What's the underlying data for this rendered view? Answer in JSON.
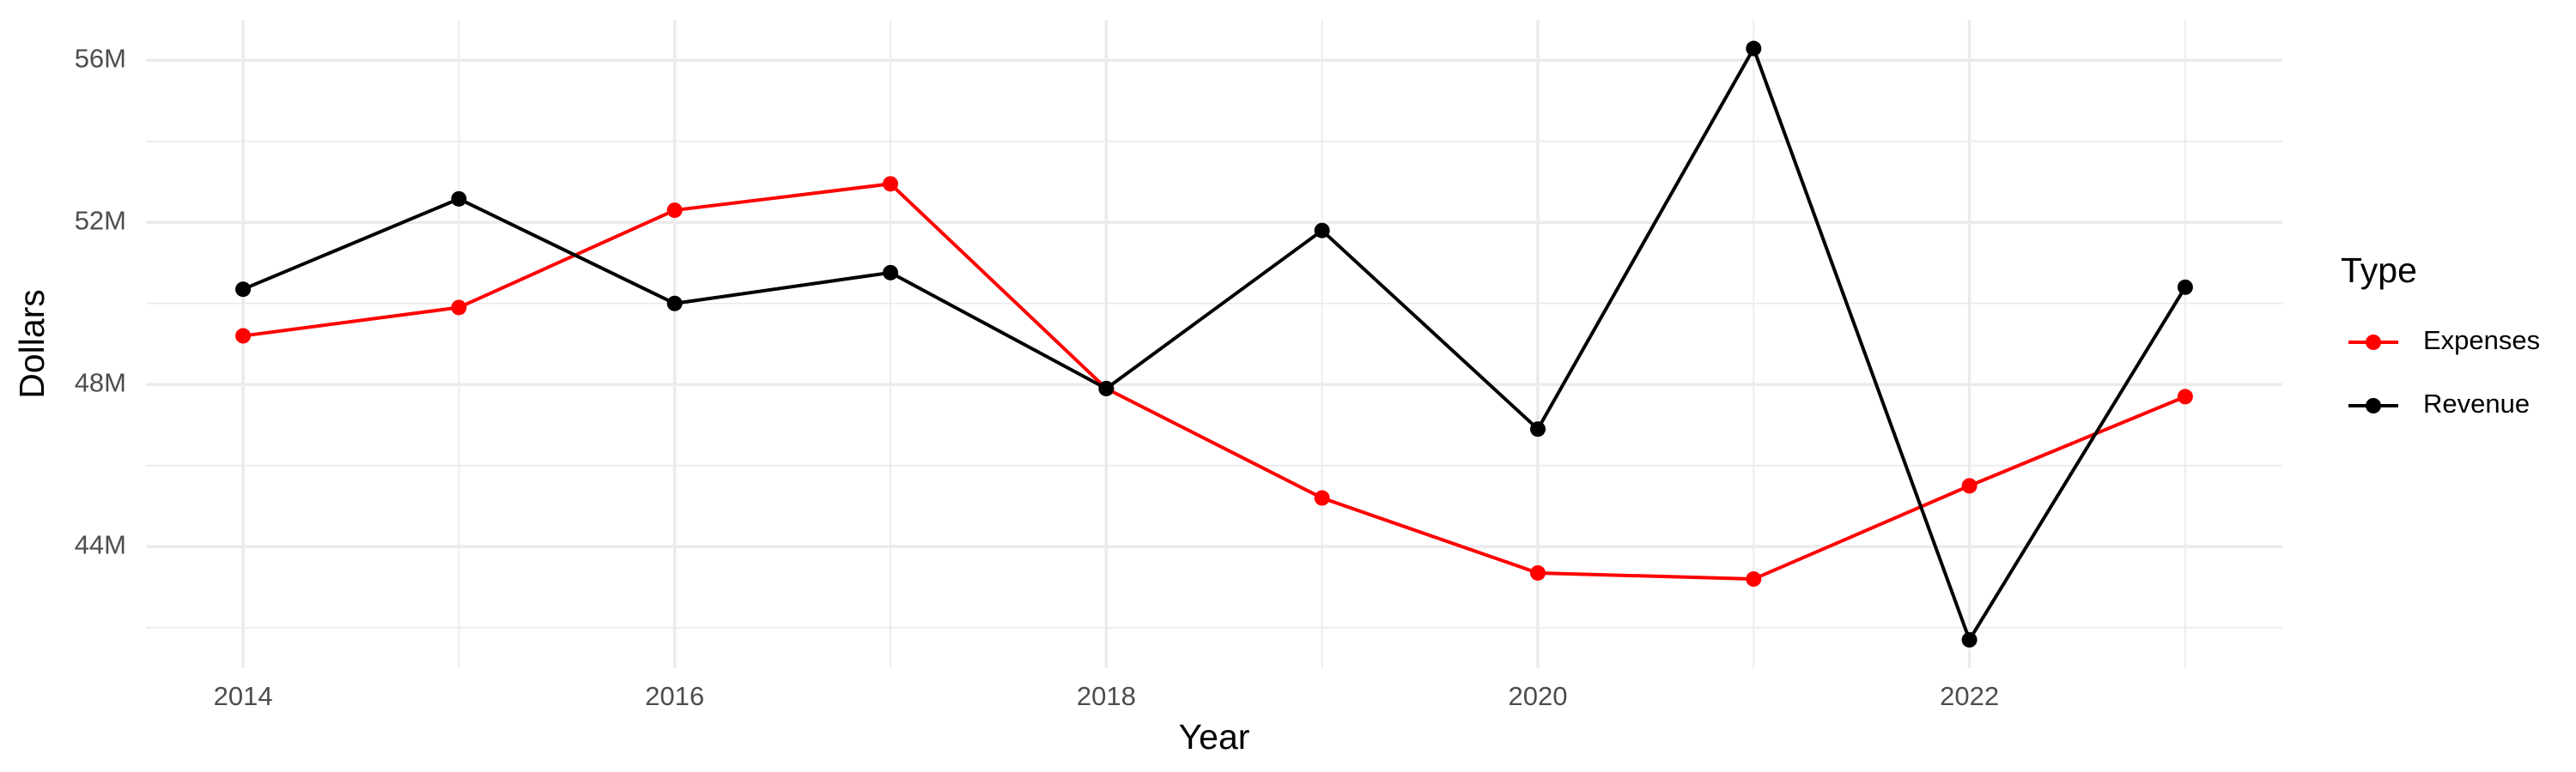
{
  "chart_data": {
    "type": "line",
    "x_label": "Year",
    "y_label": "Dollars",
    "legend_title": "Type",
    "x": [
      2014,
      2015,
      2016,
      2017,
      2018,
      2019,
      2020,
      2021,
      2022,
      2023
    ],
    "series": [
      {
        "name": "Expenses",
        "color": "#ff0000",
        "values": [
          49200000,
          49900000,
          52300000,
          52950000,
          47900000,
          45200000,
          43350000,
          43200000,
          45500000,
          47700000
        ]
      },
      {
        "name": "Revenue",
        "color": "#000000",
        "values": [
          50350000,
          52580000,
          50000000,
          50760000,
          47900000,
          51800000,
          46900000,
          56290000,
          41700000,
          50400000
        ]
      }
    ],
    "xlim": [
      2013.55,
      2023.45
    ],
    "xticks": [
      2014,
      2016,
      2018,
      2020,
      2022
    ],
    "x_minor_grid": [
      2015,
      2017,
      2019,
      2021,
      2023
    ],
    "ylim": [
      41000000,
      57000000
    ],
    "yticks": [
      {
        "value": 44000000,
        "label": "44M"
      },
      {
        "value": 48000000,
        "label": "48M"
      },
      {
        "value": 52000000,
        "label": "52M"
      },
      {
        "value": 56000000,
        "label": "56M"
      }
    ],
    "y_minor_grid": [
      42000000,
      46000000,
      50000000,
      54000000
    ],
    "grid": true,
    "legend": "right"
  }
}
